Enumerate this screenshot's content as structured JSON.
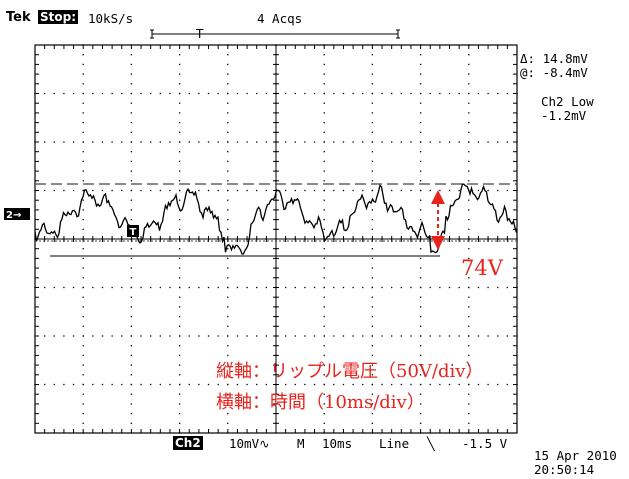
{
  "header": {
    "brand": "Tek",
    "run_state": "Stop:",
    "sample_rate": "10kS/s",
    "acquisitions": "4 Acqs",
    "trigger_marker": "T"
  },
  "readouts": {
    "delta": "Δ: 14.8mV",
    "at": "@: -8.4mV",
    "ch2_label": "Ch2 Low",
    "ch2_value": "-1.2mV"
  },
  "channel_marker": "2→",
  "trigger_flag": "T",
  "annotations": {
    "amplitude": "74V",
    "vertical_axis": "縦軸：リップル電圧（50V/div）",
    "horizontal_axis": "横軸：時間（10ms/div）"
  },
  "footer": {
    "channel": "Ch2",
    "volts_div": "10mV∿",
    "mode": "M",
    "time_div": "10ms",
    "trigger_source": "Line",
    "trigger_slope": "╲",
    "trigger_level": "-1.5 V"
  },
  "timestamp": {
    "date": "15 Apr 2010",
    "time": "20:50:14"
  },
  "colors": {
    "trace": "#000000",
    "annotation": "#e8231c",
    "grid": "#000000"
  }
}
